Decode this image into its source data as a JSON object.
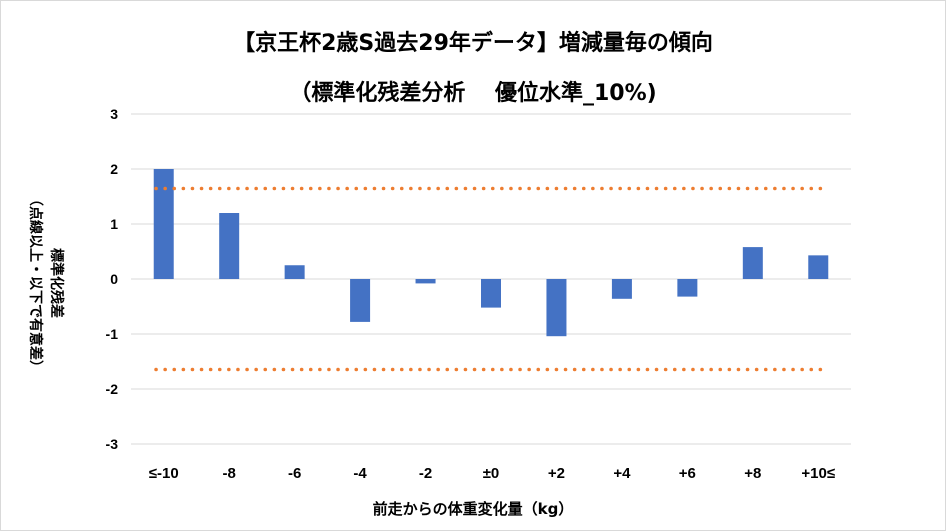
{
  "title_line1": "【京王杯2歳S過去29年データ】増減量毎の傾向",
  "title_line2": "（標準化残差分析　 優位水準_10%)",
  "ylabel_main": "標準化残差",
  "ylabel_sub": "（点線以上・以下で有意差）",
  "xlabel": "前走からの体重変化量（kg）",
  "colors": {
    "bar": "#4472c4",
    "threshold": "#ed7d31",
    "grid": "#d9d9d9"
  },
  "chart_data": {
    "type": "bar",
    "categories": [
      "≤-10",
      "-8",
      "-6",
      "-4",
      "-2",
      "±0",
      "+2",
      "+4",
      "+6",
      "+8",
      "+10≤"
    ],
    "values": [
      2.0,
      1.2,
      0.25,
      -0.78,
      -0.08,
      -0.52,
      -1.04,
      -0.36,
      -0.32,
      0.58,
      0.43
    ],
    "ylim": [
      -3,
      3
    ],
    "yticks": [
      "-3",
      "-2",
      "-1",
      "0",
      "1",
      "2",
      "3"
    ],
    "thresholds": [
      1.645,
      -1.645
    ],
    "grid": true
  }
}
